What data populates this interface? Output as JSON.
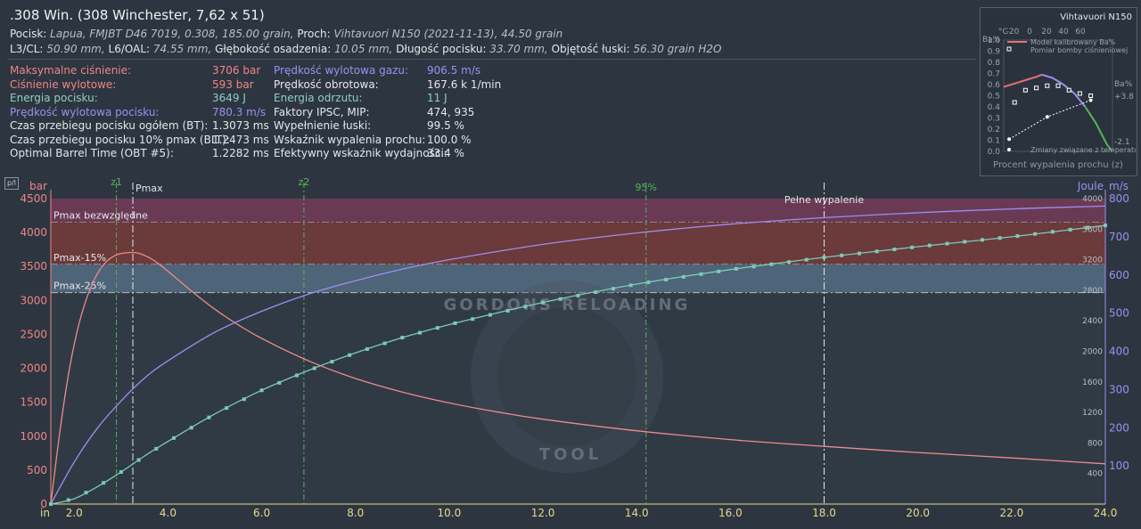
{
  "header": {
    "title": ".308 Win. (308 Winchester, 7,62 x 51)",
    "line1": {
      "bullet_label": "Pocisk:",
      "bullet_value": "Lapua, FMJBT D46 7019, 0.308, 185.00 grain,",
      "powder_label": "Proch:",
      "powder_value": "Vihtavuori N150 (2021-11-13), 44.50 grain"
    },
    "line2": {
      "l3_label": "L3/CL:",
      "l3_value": "50.90 mm,",
      "l6_label": "L6/OAL:",
      "l6_value": "74.55 mm,",
      "depth_label": "Głębokość osadzenia:",
      "depth_value": "10.05 mm,",
      "blen_label": "Długość pocisku:",
      "blen_value": "33.70 mm,",
      "vol_label": "Objętość łuski:",
      "vol_value": "56.30 grain H2O"
    }
  },
  "stats": {
    "col1": [
      {
        "label": "Maksymalne ciśnienie:",
        "value": "3706 bar",
        "color": "#f08585"
      },
      {
        "label": "Ciśnienie wylotowe:",
        "value": "593 bar",
        "color": "#f08585"
      },
      {
        "label": "Energia pocisku:",
        "value": "3649 J",
        "color": "#8fcfc0"
      },
      {
        "label": "Prędkość wylotowa pocisku:",
        "value": "780.3 m/s",
        "color": "#9d8ef0"
      },
      {
        "label": "Czas przebiegu pocisku ogółem (BT):",
        "value": "1.3073 ms",
        "color": "#e4e7ea"
      },
      {
        "label": "Czas przebiegu pocisku 10% pmax (BLT):",
        "value": "1.2473 ms",
        "color": "#e4e7ea"
      },
      {
        "label": "Optimal Barrel Time (OBT #5):",
        "value": "1.2282 ms",
        "color": "#e4e7ea"
      }
    ],
    "col2": [
      {
        "label": "Prędkość wylotowa gazu:",
        "value": "906.5 m/s",
        "color": "#9d8ef0"
      },
      {
        "label": "Prędkość obrotowa:",
        "value": "167.6 k 1/min",
        "color": "#e4e7ea"
      },
      {
        "label": "Energia odrzutu:",
        "value": "11 J",
        "color": "#8fcfc0"
      },
      {
        "label": "Faktory IPSC, MIP:",
        "value": "474, 935",
        "color": "#e4e7ea"
      },
      {
        "label": "Wypełnienie łuski:",
        "value": "99.5 %",
        "color": "#e4e7ea"
      },
      {
        "label": "Wskaźnik wypalenia prochu:",
        "value": "100.0 %",
        "color": "#e4e7ea"
      },
      {
        "label": "Efektywny wskaźnik wydajności:",
        "value": "33.4 %",
        "color": "#e4e7ea"
      }
    ]
  },
  "mini_chart": {
    "title": "Vihtavuori N150",
    "top_axis_label": "°C",
    "top_ticks": [
      "-20",
      "0",
      "20",
      "40",
      "60"
    ],
    "left_label": "Ba%",
    "right_label": "Ba%",
    "y_ticks": [
      "1.0",
      "0.9",
      "0.8",
      "0.7",
      "0.6",
      "0.5",
      "0.4",
      "0.3",
      "0.2",
      "0.1",
      "0.0"
    ],
    "right_ticks": [
      "+3.8",
      "-2.1"
    ],
    "legend": [
      "Model kalibrowany Ba%",
      "Pomiar bomby ciśnieniowej",
      "Zmiany związane z temperaturą"
    ],
    "xlabel": "Procent wypalenia prochu (z)",
    "model_curve": [
      [
        0.0,
        0.58
      ],
      [
        0.1,
        0.61
      ],
      [
        0.2,
        0.64
      ],
      [
        0.3,
        0.67
      ],
      [
        0.35,
        0.69
      ],
      [
        0.45,
        0.66
      ],
      [
        0.55,
        0.6
      ],
      [
        0.65,
        0.52
      ],
      [
        0.75,
        0.4
      ],
      [
        0.85,
        0.25
      ],
      [
        0.95,
        0.06
      ],
      [
        1.0,
        0.0
      ]
    ],
    "bomb_points": [
      [
        0.1,
        0.44
      ],
      [
        0.2,
        0.55
      ],
      [
        0.3,
        0.57
      ],
      [
        0.4,
        0.59
      ],
      [
        0.5,
        0.59
      ],
      [
        0.6,
        0.55
      ],
      [
        0.7,
        0.52
      ],
      [
        0.8,
        0.5
      ]
    ],
    "temp_points": [
      [
        0.05,
        0.11
      ],
      [
        0.4,
        0.31
      ],
      [
        0.8,
        0.46
      ]
    ]
  },
  "chart_data": {
    "type": "line",
    "x_unit": "in",
    "xlim": [
      1.5,
      24.0
    ],
    "x_ticks": [
      "2.0",
      "4.0",
      "6.0",
      "8.0",
      "10.0",
      "12.0",
      "14.0",
      "16.0",
      "18.0",
      "20.0",
      "22.0",
      "24.0"
    ],
    "left_axis": {
      "label": "bar",
      "ylim": [
        0,
        4500
      ],
      "ticks": [
        "0",
        "500",
        "1000",
        "1500",
        "2000",
        "2500",
        "3000",
        "3500",
        "4000",
        "4500"
      ]
    },
    "joule_axis": {
      "label": "Joule",
      "ylim": [
        0,
        4000
      ],
      "ticks": [
        "400",
        "800",
        "1200",
        "1600",
        "2000",
        "2400",
        "2800",
        "3200",
        "3600",
        "4000"
      ]
    },
    "ms_axis": {
      "label": "m/s",
      "ylim": [
        0,
        800
      ],
      "ticks": [
        "100",
        "200",
        "300",
        "400",
        "500",
        "600",
        "700",
        "800"
      ]
    },
    "corner_label": "p/l",
    "bands": [
      {
        "label": "Pmax bezwzględne",
        "from": 4150,
        "to": 4500,
        "color": "#6a3a55"
      },
      {
        "label": "Pmax-15%",
        "from": 3530,
        "to": 4150,
        "color": "#6b3a3b"
      },
      {
        "label": "Pmax-25%",
        "from": 3115,
        "to": 3530,
        "color": "#4e6478"
      }
    ],
    "markers": [
      {
        "label": "z1",
        "x": 2.9,
        "color": "#57b357"
      },
      {
        "label": "Pmax",
        "x": 3.25,
        "color": "#e4e7ea"
      },
      {
        "label": "z2",
        "x": 6.9,
        "color": "#57b357"
      },
      {
        "label": "95%",
        "x": 14.2,
        "color": "#57b357"
      },
      {
        "label": "Pełne wypalenie",
        "x": 18.0,
        "color": "#e4e7ea"
      }
    ],
    "series": [
      {
        "axis": "bar",
        "color": "#f08a8a",
        "x": [
          1.5,
          1.7,
          1.9,
          2.1,
          2.3,
          2.5,
          2.7,
          2.9,
          3.1,
          3.25,
          3.4,
          3.6,
          3.8,
          4.0,
          4.5,
          5.0,
          5.5,
          6.0,
          7.0,
          8.0,
          9.0,
          10.0,
          11.0,
          12.0,
          14.0,
          16.0,
          18.0,
          20.0,
          22.0,
          24.0
        ],
        "values": [
          0,
          1100,
          2000,
          2650,
          3100,
          3400,
          3580,
          3670,
          3700,
          3706,
          3690,
          3630,
          3540,
          3430,
          3140,
          2870,
          2640,
          2440,
          2110,
          1850,
          1650,
          1490,
          1360,
          1250,
          1080,
          950,
          850,
          760,
          680,
          593
        ]
      },
      {
        "axis": "ms",
        "color": "#9d8ef0",
        "x": [
          1.5,
          2.0,
          2.5,
          3.0,
          3.5,
          4.0,
          5.0,
          6.0,
          7.0,
          8.0,
          9.0,
          10.0,
          12.0,
          14.0,
          16.0,
          18.0,
          20.0,
          22.0,
          24.0
        ],
        "values": [
          0,
          110,
          200,
          270,
          330,
          375,
          450,
          505,
          550,
          585,
          615,
          640,
          680,
          710,
          733,
          750,
          763,
          773,
          780.3
        ]
      },
      {
        "axis": "joule",
        "color": "#7ec9b8",
        "markers": true,
        "x": [
          1.5,
          2.0,
          2.5,
          3.0,
          3.5,
          4.0,
          5.0,
          6.0,
          7.0,
          8.0,
          9.0,
          10.0,
          12.0,
          14.0,
          16.0,
          18.0,
          20.0,
          22.0,
          24.0
        ],
        "values": [
          0,
          70,
          230,
          420,
          630,
          820,
          1180,
          1490,
          1750,
          1980,
          2180,
          2350,
          2640,
          2880,
          3070,
          3230,
          3370,
          3500,
          3649
        ]
      }
    ]
  }
}
